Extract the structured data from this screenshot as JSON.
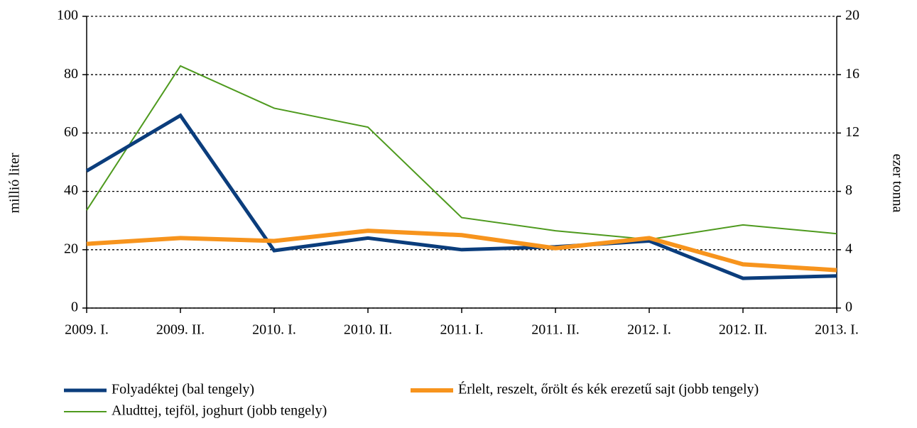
{
  "chart_data": {
    "type": "line",
    "categories": [
      "2009. I.",
      "2009. II.",
      "2010. I.",
      "2010. II.",
      "2011. I.",
      "2011. II.",
      "2012. I.",
      "2012. II.",
      "2013. I."
    ],
    "ylabel": "millió liter",
    "y2label": "ezer tonna",
    "ylim": [
      0,
      100
    ],
    "yticks": [
      0,
      20,
      40,
      60,
      80,
      100
    ],
    "y2lim": [
      0,
      20
    ],
    "y2ticks": [
      0,
      4,
      8,
      12,
      16,
      20
    ],
    "grid": true,
    "legend": "bottom",
    "series": [
      {
        "name": "Folyadéktej (bal tengely)",
        "color": "#0b3d7c",
        "width": 5,
        "values": [
          47,
          66,
          19.7,
          24,
          20,
          21,
          23,
          10.2,
          11
        ]
      },
      {
        "name": "Érlelt, reszelt, őrölt és kék erezetű sajt (jobb tengely)",
        "color": "#f7941d",
        "width": 6,
        "axis": "y2",
        "values": [
          4.4,
          4.8,
          4.6,
          5.3,
          5.0,
          4.1,
          4.8,
          3.0,
          2.6
        ]
      },
      {
        "name": "Aludttej, tejföl, joghurt (jobb tengely)",
        "color": "#4e9a1e",
        "width": 2,
        "axis": "y2",
        "values": [
          6.7,
          16.6,
          13.7,
          12.4,
          6.2,
          5.3,
          4.7,
          5.7,
          5.1
        ]
      }
    ]
  }
}
